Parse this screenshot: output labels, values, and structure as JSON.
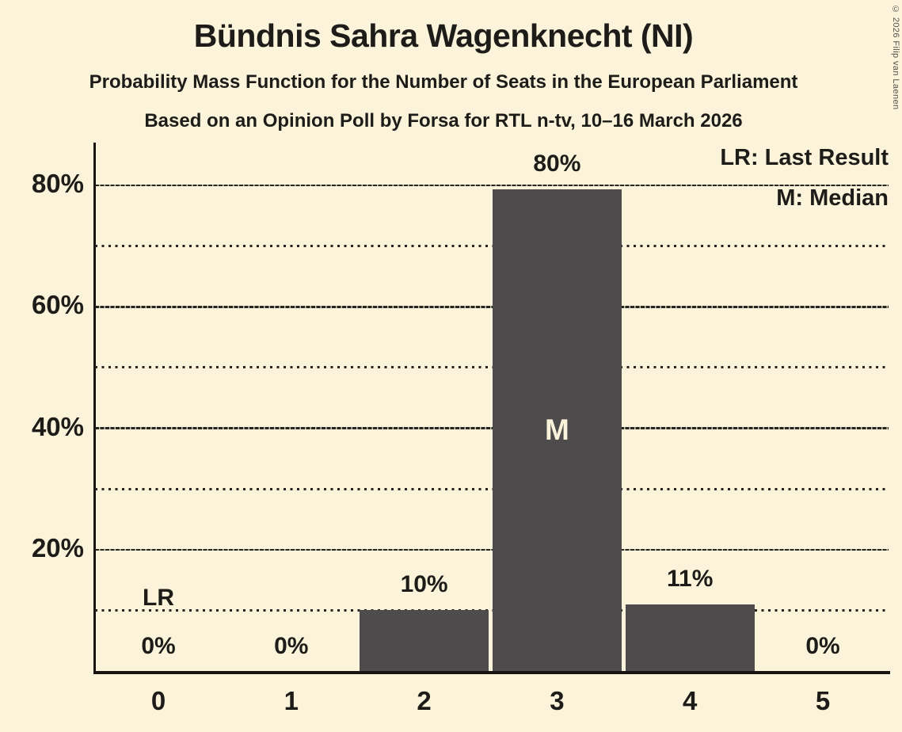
{
  "page": {
    "background": "#fbf4db",
    "copyright": "© 2026 Filip van Laenen"
  },
  "header": {
    "title": "Bündnis Sahra Wagenknecht (NI)",
    "subtitle": "Probability Mass Function for the Number of Seats in the European Parliament",
    "subsubtitle": "Based on an Opinion Poll by Forsa for RTL n-tv, 10–16 March 2026"
  },
  "legend": {
    "last_result": "LR: Last Result",
    "median": "M: Median"
  },
  "chart_data": {
    "type": "bar",
    "title": "Bündnis Sahra Wagenknecht (NI)",
    "subtitle": "Probability Mass Function for the Number of Seats in the European Parliament",
    "source_line": "Based on an Opinion Poll by Forsa for RTL n-tv, 10–16 March 2026",
    "categories": [
      "0",
      "1",
      "2",
      "3",
      "4",
      "5"
    ],
    "values": [
      0,
      0,
      10,
      80,
      11,
      0
    ],
    "bar_labels": [
      "0%",
      "0%",
      "10%",
      "80%",
      "11%",
      "0%"
    ],
    "bar_heights_pct": [
      0,
      0,
      10,
      79.4,
      11,
      0
    ],
    "ylim": [
      0,
      87
    ],
    "yticks": [
      {
        "value": 20,
        "label": "20%"
      },
      {
        "value": 40,
        "label": "40%"
      },
      {
        "value": 60,
        "label": "60%"
      },
      {
        "value": 80,
        "label": "80%"
      }
    ],
    "minor_gridlines": [
      10,
      30,
      50,
      70
    ],
    "grid": "horizontal, major dashed + minor dotted",
    "legend_position": "top-right",
    "annotations": {
      "last_result_seat": 0,
      "last_result_label": "LR",
      "median_seat": 3,
      "median_label": "M"
    },
    "colors": {
      "bar": "#4d4b4b",
      "background": "#fbf4db",
      "text": "#1d1c18",
      "grid": "#26251f",
      "median_text": "#faf3dc"
    }
  }
}
